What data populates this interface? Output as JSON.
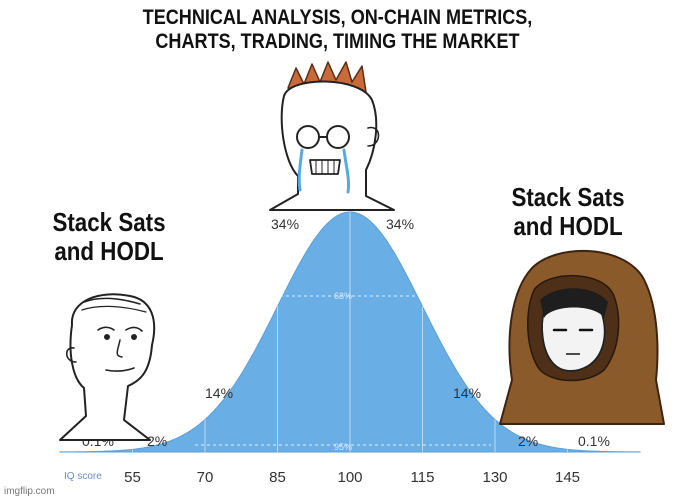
{
  "captions": {
    "top": "TECHNICAL ANALYSIS, ON-CHAIN METRICS,\nCHARTS, TRADING, TIMING THE MARKET",
    "left": "Stack Sats\nand HODL",
    "right": "Stack Sats\nand HODL"
  },
  "chart_data": {
    "type": "area",
    "xlabel": "IQ score",
    "x_ticks": [
      "55",
      "70",
      "85",
      "100",
      "115",
      "130",
      "145"
    ],
    "band_labels": [
      "0.1%",
      "2%",
      "14%",
      "34%",
      "34%",
      "14%",
      "2%",
      "0.1%"
    ],
    "inner_labels": [
      "68%",
      "95%"
    ],
    "fill_color": "#6aaee6"
  },
  "watermark": "imgflip.com"
}
